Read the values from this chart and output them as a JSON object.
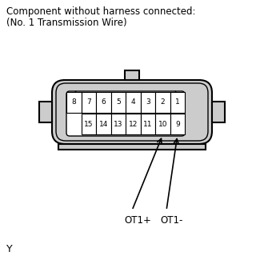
{
  "title_line1": "Component without harness connected:",
  "title_line2": "(No. 1 Transmission Wire)",
  "top_row": [
    "8",
    "7",
    "6",
    "5",
    "4",
    "3",
    "2",
    "1"
  ],
  "bottom_row": [
    "15",
    "14",
    "13",
    "12",
    "11",
    "10",
    "9"
  ],
  "label_left": "OT1+",
  "label_right": "OT1-",
  "footer": "Y",
  "bg_color": "#ffffff",
  "connector_fill": "#cccccc",
  "connector_border": "#000000",
  "pin_fill": "#e8e8e8",
  "pin_fill_white": "#ffffff",
  "pin_border": "#000000",
  "text_color": "#000000",
  "title_fontsize": 8.5,
  "pin_fontsize": 6.5,
  "label_fontsize": 8.5,
  "footer_fontsize": 9
}
